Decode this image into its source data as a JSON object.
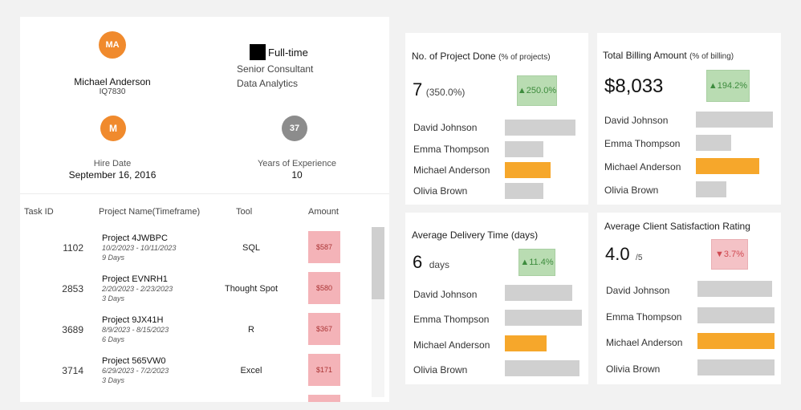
{
  "profile": {
    "initials": "MA",
    "name": "Michael Anderson",
    "employee_id": "IQ7830",
    "employment_type": "Full-time",
    "title": "Senior Consultant",
    "department": "Data Analytics",
    "hire_badge": "M",
    "hire_label": "Hire Date",
    "hire_date": "September 16, 2016",
    "experience_badge": "37",
    "experience_label": "Years of Experience",
    "experience_value": "10"
  },
  "tasks": {
    "headers": {
      "id": "Task ID",
      "project": "Project Name(Timeframe)",
      "tool": "Tool",
      "amount": "Amount"
    },
    "rows": [
      {
        "id": "1102",
        "name": "Project 4JWBPC",
        "range": "10/2/2023 - 10/11/2023",
        "days": "9 Days",
        "tool": "SQL",
        "amount": "$587"
      },
      {
        "id": "2853",
        "name": "Project EVNRH1",
        "range": "2/20/2023 - 2/23/2023",
        "days": "3 Days",
        "tool": "Thought Spot",
        "amount": "$580"
      },
      {
        "id": "3689",
        "name": "Project 9JX41H",
        "range": "8/9/2023 - 8/15/2023",
        "days": "6 Days",
        "tool": "R",
        "amount": "$367"
      },
      {
        "id": "3714",
        "name": "Project 565VW0",
        "range": "6/29/2023 - 7/2/2023",
        "days": "3 Days",
        "tool": "Excel",
        "amount": "$171"
      }
    ]
  },
  "kpis": {
    "projects": {
      "title": "No. of Project Done",
      "title_note": "(% of projects)",
      "value": "7",
      "value_note": "(350.0%)",
      "badge": "▲250.0%",
      "people": [
        "David Johnson",
        "Emma Thompson",
        "Michael Anderson",
        "Olivia Brown"
      ],
      "levels": [
        0.92,
        0.5,
        0.59,
        0.5
      ]
    },
    "billing": {
      "title": "Total Billing Amount",
      "title_note": "(% of billing)",
      "value": "$8,033",
      "badge": "▲194.2%",
      "people": [
        "David Johnson",
        "Emma Thompson",
        "Michael Anderson",
        "Olivia Brown"
      ],
      "levels": [
        1.0,
        0.46,
        0.82,
        0.4
      ]
    },
    "delivery": {
      "title": "Average Delivery Time (days)",
      "value": "6",
      "unit": "days",
      "badge": "▲11.4%",
      "people": [
        "David Johnson",
        "Emma Thompson",
        "Michael Anderson",
        "Olivia Brown"
      ],
      "levels": [
        0.87,
        1.0,
        0.54,
        0.97
      ]
    },
    "satisfaction": {
      "title": "Average Client Satisfaction Rating",
      "value": "4.0",
      "unit": "/5",
      "badge": "▼3.7%",
      "people": [
        "David Johnson",
        "Emma Thompson",
        "Michael Anderson",
        "Olivia Brown"
      ],
      "levels": [
        0.97,
        1.0,
        1.0,
        1.0
      ]
    }
  },
  "colors": {
    "profile_accent": "#f08a2d",
    "gray_badge": "#8c8c8c",
    "highlight_bar": "#f6a72b",
    "neutral_bar": "#d0d0d0",
    "amount_cell": "#f4b3b8",
    "up_badge": "#b9dcb2",
    "down_badge": "#f4c2c6"
  }
}
